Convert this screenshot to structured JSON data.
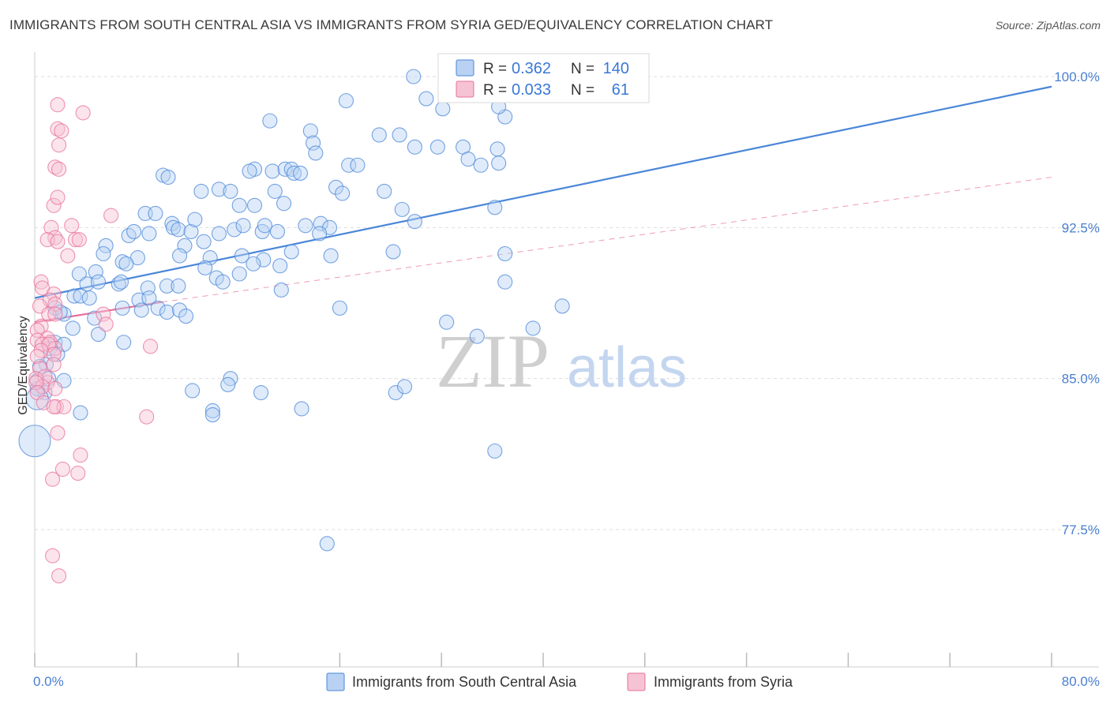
{
  "title": "IMMIGRANTS FROM SOUTH CENTRAL ASIA VS IMMIGRANTS FROM SYRIA GED/EQUIVALENCY CORRELATION CHART",
  "source": "Source: ZipAtlas.com",
  "watermark": {
    "zip": "ZIP",
    "atlas": "atlas"
  },
  "legend_box": {
    "rows": [
      {
        "r_label": "R =",
        "r_value": "0.362",
        "n_label": "N =",
        "n_value": "140"
      },
      {
        "r_label": "R =",
        "r_value": "0.033",
        "n_label": "N =",
        "n_value": "61"
      }
    ]
  },
  "chart_data": {
    "type": "scatter",
    "xlabel": "",
    "ylabel": "GED/Equivalency",
    "xlim": [
      0,
      80
    ],
    "ylim": [
      70,
      101
    ],
    "x_tick_labels": {
      "left": "0.0%",
      "right": "80.0%"
    },
    "y_ticks": [
      {
        "value": 100,
        "label": "100.0%"
      },
      {
        "value": 92.5,
        "label": "92.5%"
      },
      {
        "value": 85,
        "label": "85.0%"
      },
      {
        "value": 77.5,
        "label": "77.5%"
      }
    ],
    "grid": true,
    "legend_position": "bottom",
    "colors": {
      "blue": "#4a86d8",
      "blue_fill": "#b9d2f3",
      "pink": "#e8709a",
      "pink_fill": "#f6c3d4"
    },
    "series": [
      {
        "name": "Immigrants from South Central Asia",
        "color": "#4a86d8",
        "trend": {
          "x0": 0,
          "y0": 89.0,
          "x1": 80,
          "y1": 99.5,
          "dash": false
        },
        "points": [
          [
            29.8,
            100.0
          ],
          [
            30.8,
            98.9
          ],
          [
            32.1,
            98.4
          ],
          [
            24.5,
            98.8
          ],
          [
            37.0,
            98.0
          ],
          [
            36.5,
            98.5
          ],
          [
            18.5,
            97.8
          ],
          [
            21.7,
            97.3
          ],
          [
            27.1,
            97.1
          ],
          [
            28.7,
            97.1
          ],
          [
            29.9,
            96.5
          ],
          [
            31.7,
            96.5
          ],
          [
            33.7,
            96.5
          ],
          [
            36.4,
            96.4
          ],
          [
            21.9,
            96.7
          ],
          [
            22.1,
            96.2
          ],
          [
            34.1,
            95.9
          ],
          [
            35.1,
            95.6
          ],
          [
            36.5,
            95.7
          ],
          [
            24.7,
            95.6
          ],
          [
            25.4,
            95.6
          ],
          [
            17.3,
            95.4
          ],
          [
            16.9,
            95.3
          ],
          [
            18.7,
            95.3
          ],
          [
            19.7,
            95.4
          ],
          [
            20.2,
            95.4
          ],
          [
            20.4,
            95.2
          ],
          [
            20.9,
            95.2
          ],
          [
            10.1,
            95.1
          ],
          [
            10.5,
            95.0
          ],
          [
            14.5,
            94.4
          ],
          [
            15.4,
            94.3
          ],
          [
            23.7,
            94.5
          ],
          [
            24.2,
            94.2
          ],
          [
            27.5,
            94.3
          ],
          [
            13.1,
            94.3
          ],
          [
            18.9,
            94.3
          ],
          [
            19.6,
            93.7
          ],
          [
            16.1,
            93.6
          ],
          [
            17.3,
            93.6
          ],
          [
            21.3,
            92.6
          ],
          [
            22.5,
            92.7
          ],
          [
            23.2,
            92.5
          ],
          [
            36.2,
            93.5
          ],
          [
            28.9,
            93.4
          ],
          [
            29.9,
            92.8
          ],
          [
            8.7,
            93.2
          ],
          [
            9.5,
            93.2
          ],
          [
            10.8,
            92.7
          ],
          [
            10.9,
            92.5
          ],
          [
            11.3,
            92.4
          ],
          [
            12.3,
            92.3
          ],
          [
            14.5,
            92.2
          ],
          [
            15.7,
            92.4
          ],
          [
            12.6,
            92.9
          ],
          [
            16.4,
            92.6
          ],
          [
            7.4,
            92.1
          ],
          [
            7.8,
            92.3
          ],
          [
            9.0,
            92.2
          ],
          [
            17.9,
            92.3
          ],
          [
            18.1,
            92.6
          ],
          [
            19.1,
            92.3
          ],
          [
            22.4,
            92.2
          ],
          [
            13.3,
            91.8
          ],
          [
            11.8,
            91.6
          ],
          [
            5.6,
            91.6
          ],
          [
            5.4,
            91.2
          ],
          [
            8.1,
            91.0
          ],
          [
            6.9,
            90.8
          ],
          [
            11.4,
            91.1
          ],
          [
            13.8,
            91.0
          ],
          [
            16.3,
            91.1
          ],
          [
            20.2,
            91.3
          ],
          [
            23.3,
            91.1
          ],
          [
            18.0,
            90.9
          ],
          [
            17.2,
            90.7
          ],
          [
            7.2,
            90.7
          ],
          [
            13.4,
            90.5
          ],
          [
            19.3,
            90.6
          ],
          [
            16.1,
            90.2
          ],
          [
            3.5,
            90.2
          ],
          [
            4.8,
            90.3
          ],
          [
            4.1,
            89.7
          ],
          [
            5.0,
            89.8
          ],
          [
            6.6,
            89.7
          ],
          [
            6.8,
            89.8
          ],
          [
            10.4,
            89.6
          ],
          [
            11.3,
            89.6
          ],
          [
            14.3,
            90.0
          ],
          [
            14.8,
            89.8
          ],
          [
            28.2,
            91.3
          ],
          [
            37.0,
            91.2
          ],
          [
            8.9,
            89.5
          ],
          [
            19.4,
            89.4
          ],
          [
            3.1,
            89.1
          ],
          [
            3.6,
            89.1
          ],
          [
            4.3,
            89.0
          ],
          [
            8.2,
            88.9
          ],
          [
            9.0,
            89.0
          ],
          [
            6.9,
            88.5
          ],
          [
            8.4,
            88.4
          ],
          [
            9.7,
            88.5
          ],
          [
            10.4,
            88.3
          ],
          [
            11.4,
            88.4
          ],
          [
            11.9,
            88.1
          ],
          [
            2.3,
            88.2
          ],
          [
            1.6,
            88.5
          ],
          [
            4.7,
            88.0
          ],
          [
            2.0,
            88.3
          ],
          [
            3.0,
            87.5
          ],
          [
            24.0,
            88.5
          ],
          [
            37.0,
            89.8
          ],
          [
            5.0,
            87.2
          ],
          [
            7.0,
            86.8
          ],
          [
            1.6,
            86.8
          ],
          [
            2.3,
            86.7
          ],
          [
            1.2,
            86.5
          ],
          [
            1.8,
            86.2
          ],
          [
            0.9,
            85.7
          ],
          [
            1.1,
            85.0
          ],
          [
            0.8,
            84.3
          ],
          [
            2.3,
            84.9
          ],
          [
            0.2,
            84.5
          ],
          [
            0.2,
            84.9
          ],
          [
            0.4,
            85.6
          ],
          [
            15.4,
            85.0
          ],
          [
            15.2,
            84.7
          ],
          [
            12.4,
            84.4
          ],
          [
            17.8,
            84.3
          ],
          [
            28.4,
            84.3
          ],
          [
            29.1,
            84.6
          ],
          [
            14.0,
            83.4
          ],
          [
            14.0,
            83.2
          ],
          [
            21.0,
            83.5
          ],
          [
            3.6,
            83.3
          ],
          [
            0.2,
            84.0
          ],
          [
            0.0,
            81.9
          ],
          [
            36.2,
            81.4
          ],
          [
            41.5,
            88.6
          ],
          [
            32.4,
            87.8
          ],
          [
            39.2,
            87.5
          ],
          [
            34.8,
            87.1
          ],
          [
            23.0,
            76.8
          ]
        ]
      },
      {
        "name": "Immigrants from Syria",
        "color": "#e8709a",
        "trend": {
          "x0": 0,
          "y0": 87.8,
          "x1": 10,
          "y1": 88.8,
          "dash": false
        },
        "trend_extension": {
          "x0": 10,
          "y0": 88.8,
          "x1": 80,
          "y1": 95.0,
          "dash": true
        },
        "points": [
          [
            1.8,
            98.6
          ],
          [
            3.8,
            98.2
          ],
          [
            1.8,
            97.4
          ],
          [
            2.1,
            97.3
          ],
          [
            1.9,
            96.6
          ],
          [
            1.6,
            95.5
          ],
          [
            1.9,
            95.4
          ],
          [
            1.5,
            93.6
          ],
          [
            1.8,
            94.0
          ],
          [
            6.0,
            93.1
          ],
          [
            1.3,
            92.5
          ],
          [
            2.9,
            92.6
          ],
          [
            1.6,
            92.0
          ],
          [
            1.0,
            91.9
          ],
          [
            1.8,
            91.8
          ],
          [
            3.2,
            91.9
          ],
          [
            3.5,
            91.9
          ],
          [
            2.6,
            91.1
          ],
          [
            0.5,
            89.8
          ],
          [
            0.6,
            89.5
          ],
          [
            1.5,
            89.2
          ],
          [
            1.2,
            88.9
          ],
          [
            1.6,
            88.7
          ],
          [
            0.4,
            88.6
          ],
          [
            1.1,
            88.2
          ],
          [
            1.6,
            88.2
          ],
          [
            5.4,
            88.2
          ],
          [
            5.6,
            87.7
          ],
          [
            0.5,
            87.6
          ],
          [
            0.2,
            87.4
          ],
          [
            1.0,
            87.0
          ],
          [
            1.2,
            86.8
          ],
          [
            0.2,
            86.9
          ],
          [
            0.6,
            86.7
          ],
          [
            1.6,
            86.5
          ],
          [
            1.1,
            86.7
          ],
          [
            0.5,
            86.4
          ],
          [
            0.2,
            86.1
          ],
          [
            1.5,
            86.2
          ],
          [
            9.1,
            86.6
          ],
          [
            0.4,
            85.5
          ],
          [
            0.1,
            85.0
          ],
          [
            1.0,
            84.8
          ],
          [
            0.8,
            85.1
          ],
          [
            0.6,
            84.6
          ],
          [
            0.1,
            84.8
          ],
          [
            0.2,
            84.3
          ],
          [
            1.5,
            85.7
          ],
          [
            1.6,
            84.5
          ],
          [
            0.7,
            83.8
          ],
          [
            1.7,
            83.6
          ],
          [
            2.3,
            83.6
          ],
          [
            8.8,
            83.1
          ],
          [
            1.8,
            82.3
          ],
          [
            3.6,
            81.2
          ],
          [
            2.2,
            80.5
          ],
          [
            1.4,
            80.0
          ],
          [
            1.4,
            76.2
          ],
          [
            1.9,
            75.2
          ],
          [
            3.4,
            80.3
          ],
          [
            1.5,
            83.6
          ]
        ]
      }
    ]
  }
}
